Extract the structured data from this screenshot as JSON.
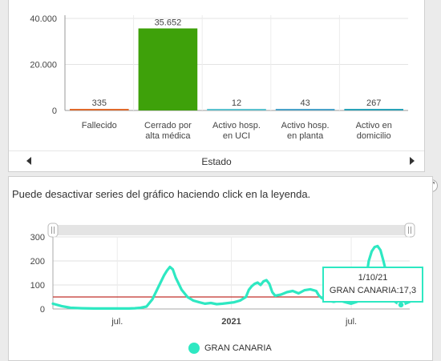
{
  "top_chart": {
    "chart_data": {
      "type": "bar",
      "categories": [
        "Fallecido",
        "Cerrado por alta médica",
        "Activo hosp. en UCI",
        "Activo hosp. en planta",
        "Activo en domicilio"
      ],
      "category_lines": [
        [
          "Fallecido"
        ],
        [
          "Cerrado por",
          "alta médica"
        ],
        [
          "Activo hosp.",
          "en UCI"
        ],
        [
          "Activo hosp.",
          "en planta"
        ],
        [
          "Activo en",
          "domicilio"
        ]
      ],
      "values": [
        335,
        35652,
        12,
        43,
        267
      ],
      "value_labels": [
        "335",
        "35.652",
        "12",
        "43",
        "267"
      ],
      "colors": [
        "#e06a2c",
        "#3ea10a",
        "#5bc2cf",
        "#4aa3c9",
        "#29a3b8"
      ],
      "xlabel": "Estado",
      "ylim": [
        0,
        40000
      ],
      "yticks": [
        0,
        20000,
        40000
      ],
      "ytick_labels": [
        "0",
        "20.000",
        "40.000"
      ],
      "grid": true
    },
    "nav": {
      "prev_icon": "chevron-left-icon",
      "next_icon": "chevron-right-icon",
      "xlabel": "Estado"
    }
  },
  "bottom_chart": {
    "hint": "Puede desactivar series del gráfico haciendo click en la leyenda.",
    "expand_icon": "expand-icon",
    "chart_data": {
      "type": "line",
      "series": [
        {
          "name": "GRAN CANARIA",
          "color": "#2ee8c2",
          "points": [
            [
              0,
              22
            ],
            [
              3,
              12
            ],
            [
              6,
              5
            ],
            [
              10,
              3
            ],
            [
              14,
              2
            ],
            [
              18,
              2
            ],
            [
              22,
              2
            ],
            [
              26,
              2
            ],
            [
              28,
              3
            ],
            [
              30,
              5
            ],
            [
              32,
              10
            ],
            [
              34,
              40
            ],
            [
              36,
              90
            ],
            [
              38,
              140
            ],
            [
              39,
              160
            ],
            [
              40,
              175
            ],
            [
              41,
              165
            ],
            [
              42,
              130
            ],
            [
              44,
              80
            ],
            [
              46,
              50
            ],
            [
              48,
              35
            ],
            [
              50,
              28
            ],
            [
              52,
              22
            ],
            [
              54,
              25
            ],
            [
              56,
              20
            ],
            [
              58,
              22
            ],
            [
              60,
              25
            ],
            [
              62,
              28
            ],
            [
              64,
              35
            ],
            [
              66,
              50
            ],
            [
              67,
              80
            ],
            [
              68,
              95
            ],
            [
              69,
              105
            ],
            [
              70,
              110
            ],
            [
              71,
              100
            ],
            [
              72,
              115
            ],
            [
              73,
              120
            ],
            [
              74,
              105
            ],
            [
              75,
              70
            ],
            [
              76,
              55
            ],
            [
              78,
              60
            ],
            [
              80,
              70
            ],
            [
              82,
              75
            ],
            [
              84,
              65
            ],
            [
              86,
              78
            ],
            [
              88,
              82
            ],
            [
              90,
              75
            ],
            [
              91,
              55
            ],
            [
              92,
              45
            ],
            [
              94,
              35
            ],
            [
              96,
              30
            ],
            [
              98,
              35
            ],
            [
              100,
              28
            ],
            [
              102,
              22
            ],
            [
              104,
              30
            ],
            [
              106,
              60
            ],
            [
              107,
              120
            ],
            [
              108,
              200
            ],
            [
              109,
              240
            ],
            [
              110,
              258
            ],
            [
              111,
              262
            ],
            [
              112,
              245
            ],
            [
              113,
              200
            ],
            [
              114,
              150
            ],
            [
              115,
              90
            ],
            [
              116,
              50
            ],
            [
              117,
              30
            ],
            [
              118,
              22
            ],
            [
              119,
              17.3
            ],
            [
              120,
              20
            ],
            [
              121,
              25
            ],
            [
              122,
              30
            ]
          ]
        }
      ],
      "threshold": {
        "value": 50,
        "color": "#c0302a"
      },
      "ylim": [
        0,
        300
      ],
      "yticks": [
        0,
        100,
        200,
        300
      ],
      "xticks": [
        {
          "pos": 22,
          "label": "jul.",
          "bold": false
        },
        {
          "pos": 61,
          "label": "2021",
          "bold": true
        },
        {
          "pos": 102,
          "label": "jul.",
          "bold": false
        }
      ],
      "xlim": [
        0,
        122
      ],
      "tooltip": {
        "date": "1/10/21",
        "text": "GRAN CANARIA:17,3",
        "x": 119,
        "y": 17.3
      }
    },
    "legend": {
      "label": "GRAN CANARIA",
      "color": "#2ee8c2"
    },
    "scroll": {
      "left_handle": "slider-left-handle-icon",
      "right_handle": "slider-right-handle-icon"
    }
  }
}
